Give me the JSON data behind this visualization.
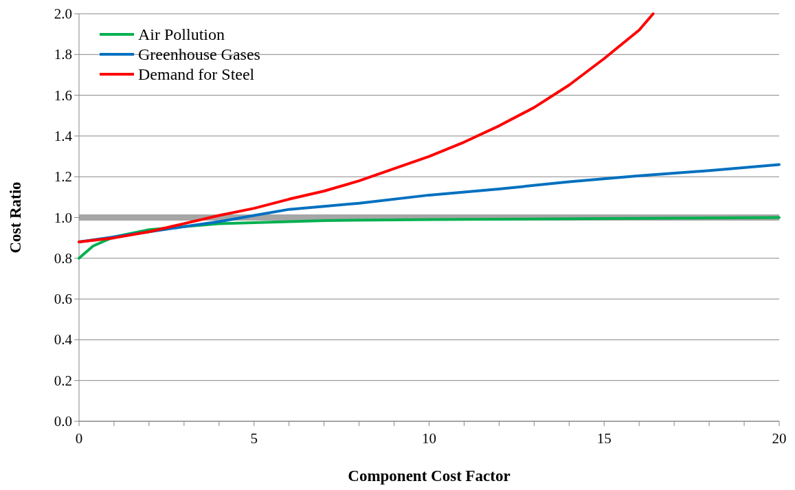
{
  "chart_data": {
    "type": "line",
    "xlabel": "Component Cost Factor",
    "ylabel": "Cost Ratio",
    "xlim": [
      0,
      20
    ],
    "xticks": [
      0,
      {
        "value": 1,
        "label": null
      },
      {
        "value": 2,
        "label": null
      },
      {
        "value": 3,
        "label": null
      },
      {
        "value": 4,
        "label": null
      },
      5,
      {
        "value": 6,
        "label": null
      },
      {
        "value": 7,
        "label": null
      },
      {
        "value": 8,
        "label": null
      },
      {
        "value": 9,
        "label": null
      },
      10,
      {
        "value": 11,
        "label": null
      },
      {
        "value": 12,
        "label": null
      },
      {
        "value": 13,
        "label": null
      },
      {
        "value": 14,
        "label": null
      },
      15,
      {
        "value": 16,
        "label": null
      },
      {
        "value": 17,
        "label": null
      },
      {
        "value": 18,
        "label": null
      },
      {
        "value": 19,
        "label": null
      },
      20
    ],
    "ylim": [
      0,
      2
    ],
    "yticks": [
      {
        "value": 0,
        "label": "0.0"
      },
      0.2,
      0.4,
      0.6,
      0.8,
      {
        "value": 1,
        "label": "1.0"
      },
      1.2,
      1.4,
      1.6,
      1.8,
      {
        "value": 2,
        "label": "2.0"
      }
    ],
    "grid": "y",
    "legend": "top left",
    "marker": "none",
    "line_style": "solid",
    "ref_lines": [
      {
        "axis": "y",
        "value": 1,
        "color": "#a6a6a6"
      }
    ],
    "series": [
      {
        "name": "Air Pollution",
        "color": "#00b050",
        "x": [
          0,
          0.4,
          1,
          2,
          3,
          4,
          5,
          7,
          10,
          15,
          20
        ],
        "values": [
          0.8,
          0.86,
          0.905,
          0.94,
          0.955,
          0.97,
          0.975,
          0.985,
          0.99,
          0.995,
          1.0
        ]
      },
      {
        "name": "Greenhouse Gases",
        "color": "#0070c0",
        "x": [
          0,
          1,
          2,
          3,
          4,
          5,
          6,
          7,
          8,
          10,
          12,
          14,
          16,
          18,
          20
        ],
        "values": [
          0.88,
          0.905,
          0.93,
          0.955,
          0.98,
          1.01,
          1.04,
          1.055,
          1.07,
          1.11,
          1.14,
          1.175,
          1.205,
          1.23,
          1.26
        ]
      },
      {
        "name": "Demand for Steel",
        "color": "#ff0000",
        "x": [
          0,
          1,
          2,
          3,
          4,
          5,
          6,
          7,
          8,
          9,
          10,
          11,
          12,
          13,
          14,
          15,
          16,
          16.4
        ],
        "values": [
          0.88,
          0.9,
          0.93,
          0.97,
          1.01,
          1.045,
          1.09,
          1.13,
          1.18,
          1.24,
          1.3,
          1.37,
          1.45,
          1.54,
          1.65,
          1.78,
          1.92,
          2.0
        ]
      }
    ]
  }
}
